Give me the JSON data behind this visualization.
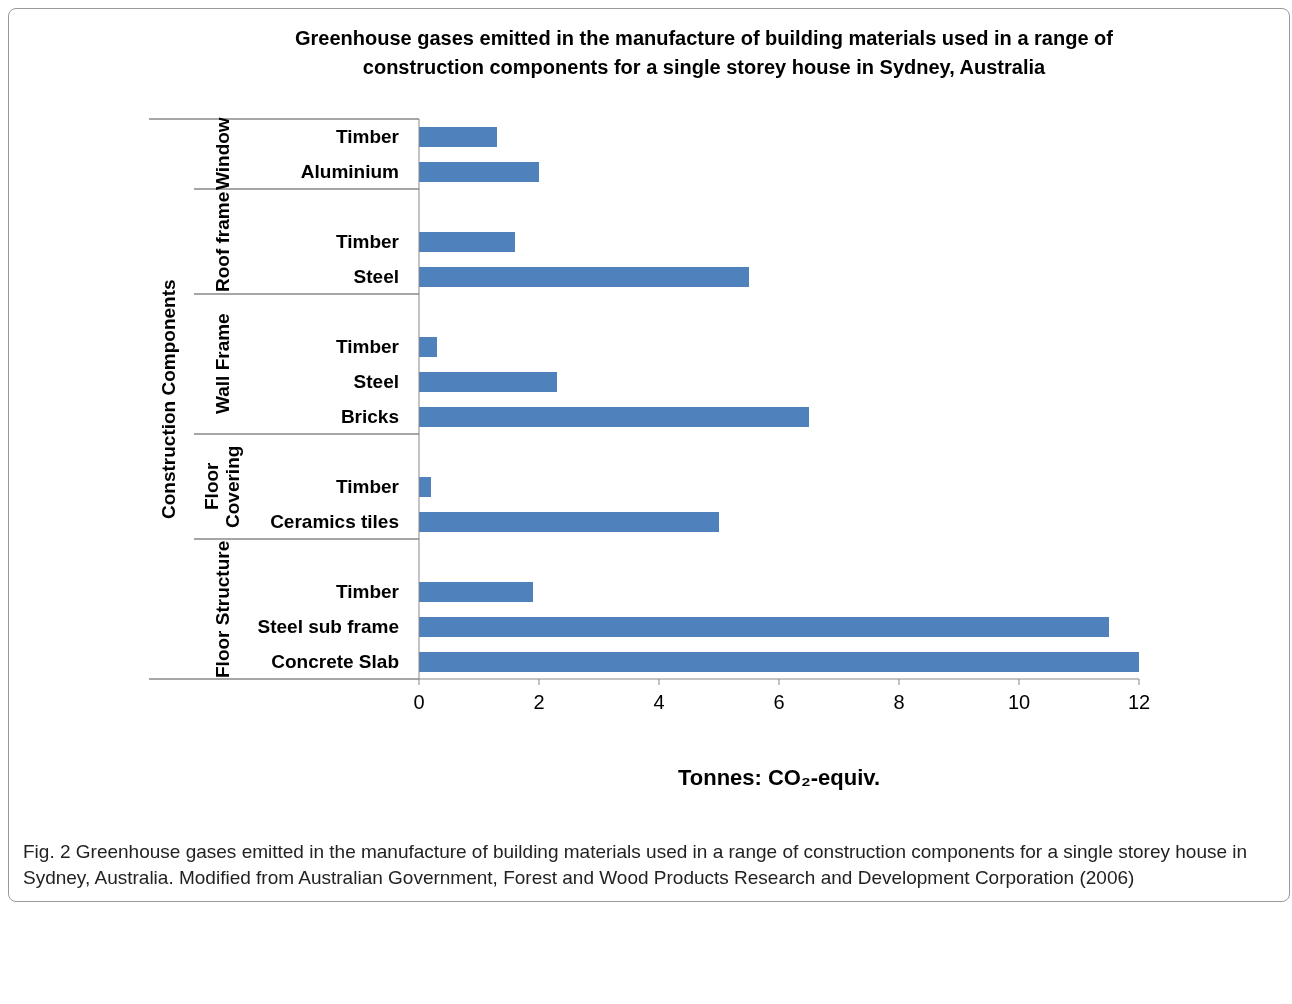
{
  "chart_data": {
    "type": "bar",
    "orientation": "horizontal",
    "title": "Greenhouse gases emitted in the manufacture of building materials used in a range of construction components for a single storey house in Sydney, Australia",
    "xlabel": "Tonnes: CO₂-equiv.",
    "ylabel": "Construction Components",
    "categories": [
      "Timber",
      "Aluminium",
      null,
      "Timber",
      "Steel",
      null,
      "Timber",
      "Steel",
      "Bricks",
      null,
      "Timber",
      "Ceramics tiles",
      null,
      "Timber",
      "Steel sub frame",
      "Concrete Slab"
    ],
    "values": [
      1.3,
      2.0,
      null,
      1.6,
      5.5,
      null,
      0.3,
      2.3,
      6.5,
      null,
      0.2,
      5.0,
      null,
      1.9,
      11.5,
      12.0
    ],
    "color": "#4f81bd",
    "xlim": [
      0,
      12
    ],
    "xticks": [
      0,
      2,
      4,
      6,
      8,
      10,
      12
    ],
    "grid": false,
    "legend": false,
    "annotations": [
      "Window",
      "Roof frame",
      "Wall Frame",
      "Floor Covering",
      "Floor Structure",
      "Fig. 2  Greenhouse gases emitted in the manufacture of building materials used in a range of construction components for a single storey house in Sydney, Australia. Modified from Australian Government, Forest and Wood Products Research and Development Corporation (2006)"
    ]
  }
}
